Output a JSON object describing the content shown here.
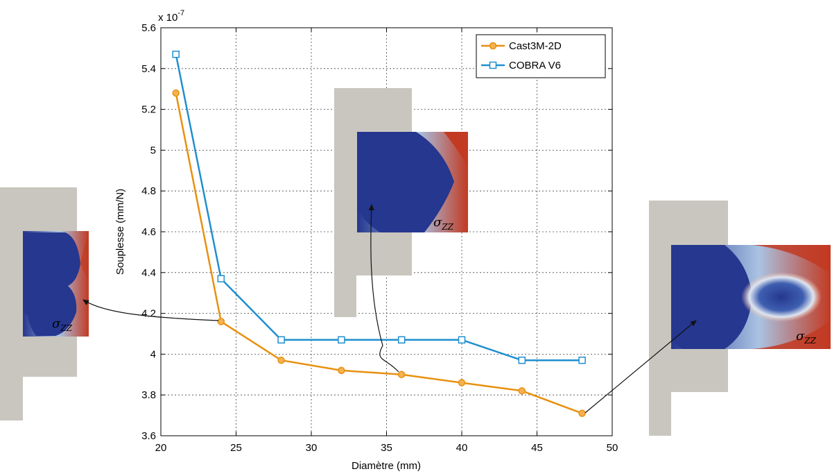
{
  "chart_data": {
    "type": "line",
    "xlabel": "Diamètre (mm)",
    "ylabel": "Souplesse (mm/N)",
    "exponent_label": "x 10",
    "exponent_power": "-7",
    "xlim": [
      20,
      50
    ],
    "ylim": [
      3.6,
      5.6
    ],
    "xticks": [
      20,
      25,
      30,
      35,
      40,
      45,
      50
    ],
    "yticks": [
      3.6,
      3.8,
      4,
      4.2,
      4.4,
      4.6,
      4.8,
      5,
      5.2,
      5.4,
      5.6
    ],
    "grid": true,
    "legend_position": "top-right",
    "series": [
      {
        "name": "Cast3M-2D",
        "color": "#e8900f",
        "marker": "circle",
        "x": [
          21,
          24,
          28,
          32,
          36,
          40,
          44,
          48
        ],
        "y": [
          5.28,
          4.16,
          3.97,
          3.92,
          3.9,
          3.86,
          3.82,
          3.71
        ]
      },
      {
        "name": "COBRA V6",
        "color": "#1f8fd0",
        "marker": "square",
        "x": [
          21,
          24,
          28,
          32,
          36,
          40,
          44,
          48
        ],
        "y": [
          5.47,
          4.37,
          4.07,
          4.07,
          4.07,
          4.07,
          3.97,
          3.97
        ]
      }
    ]
  },
  "insets": {
    "left_label_base": "σ",
    "left_label_sub": "ZZ",
    "middle_label_base": "σ",
    "middle_label_sub": "ZZ",
    "right_label_base": "σ",
    "right_label_sub": "ZZ",
    "material_color": "#c9c6bf",
    "stress_low_color": "#25378f",
    "stress_high_color": "#c23a22"
  }
}
